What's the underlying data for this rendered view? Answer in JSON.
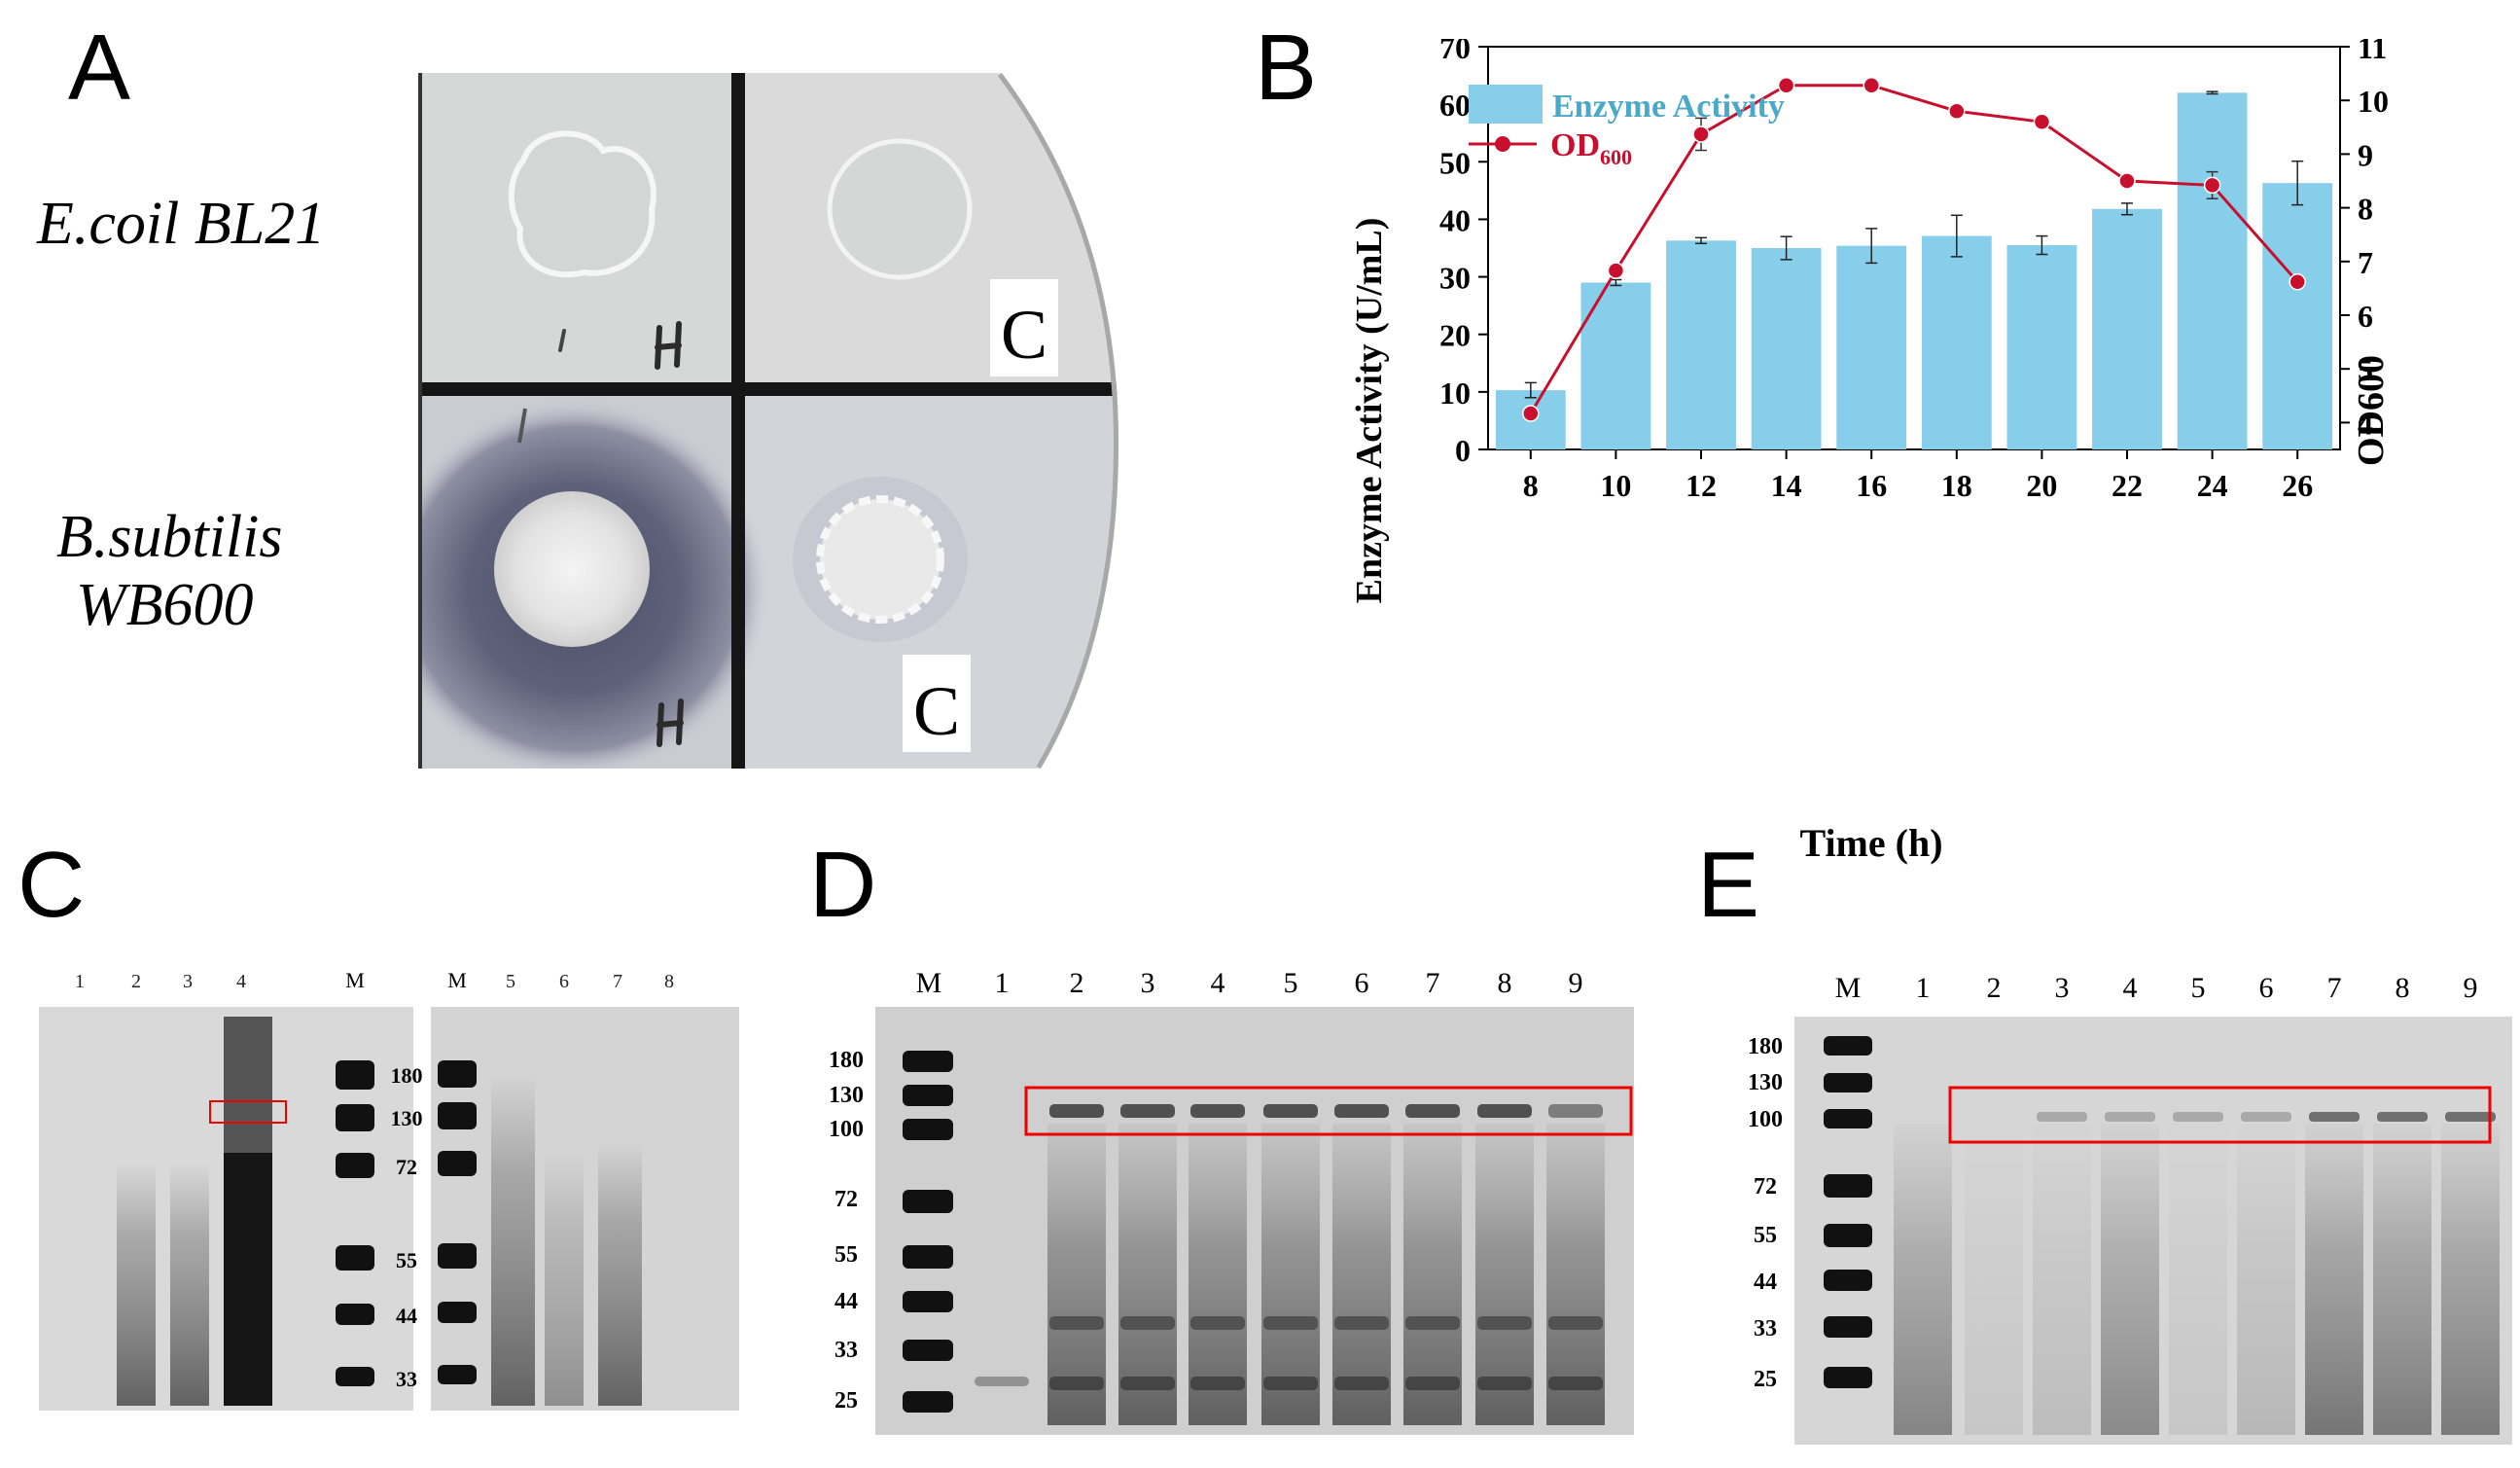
{
  "panels": {
    "a": {
      "letter": "A",
      "strain_top": "E.coil BL21",
      "strain_bottom_1": "B.subtilis",
      "strain_bottom_2": "WB600",
      "plate_marks": {
        "h": "H",
        "c": "C"
      }
    },
    "b": {
      "letter": "B"
    },
    "c": {
      "letter": "C",
      "lanes_left": [
        "1",
        "2",
        "3",
        "4"
      ],
      "marker_left": "M",
      "marker_right": "M",
      "lanes_right": [
        "5",
        "6",
        "7",
        "8"
      ],
      "mw": [
        "180",
        "130",
        "72",
        "55",
        "44",
        "33"
      ]
    },
    "d": {
      "letter": "D",
      "lanes": [
        "M",
        "1",
        "2",
        "3",
        "4",
        "5",
        "6",
        "7",
        "8",
        "9"
      ],
      "mw": [
        "180",
        "130",
        "100",
        "72",
        "55",
        "44",
        "33",
        "25"
      ]
    },
    "e": {
      "letter": "E",
      "lanes": [
        "M",
        "1",
        "2",
        "3",
        "4",
        "5",
        "6",
        "7",
        "8",
        "9"
      ],
      "mw": [
        "180",
        "130",
        "100",
        "72",
        "55",
        "44",
        "33",
        "25"
      ]
    }
  },
  "chart_data": {
    "type": "bar",
    "categories": [
      "8",
      "10",
      "12",
      "14",
      "16",
      "18",
      "20",
      "22",
      "24",
      "26"
    ],
    "xlabel": "Time (h)",
    "ylabel": "Enzyme Activity (U/mL)",
    "y2label": "OD600",
    "ylim": [
      0,
      70
    ],
    "y2lim": [
      3.5,
      11
    ],
    "yticks": [
      "0",
      "10",
      "20",
      "30",
      "40",
      "50",
      "60",
      "70"
    ],
    "y2ticks": [
      "4",
      "5",
      "6",
      "7",
      "8",
      "9",
      "10",
      "11"
    ],
    "legend_position": "top-left",
    "legend_bar": "Enzyme Activity",
    "legend_line_main": "OD",
    "legend_line_sub": "600",
    "bar_color": "#87ceeb",
    "line_color": "#c8102e",
    "series": [
      {
        "name": "Enzyme Activity",
        "values": [
          10.3,
          29,
          36.3,
          35,
          35.4,
          37.1,
          35.5,
          41.8,
          62,
          46.3
        ],
        "err": [
          1.3,
          0.5,
          0.5,
          2,
          3,
          3.6,
          1.6,
          1,
          0.2,
          3.8
        ]
      },
      {
        "name": "OD600",
        "axis": "right",
        "values": [
          4.17,
          6.83,
          9.37,
          10.28,
          10.28,
          9.8,
          9.6,
          8.5,
          8.42,
          6.62
        ],
        "err": [
          0.05,
          0.1,
          0.3,
          0.1,
          0.05,
          0.05,
          0.05,
          0.05,
          0.25,
          0.1
        ]
      }
    ]
  }
}
